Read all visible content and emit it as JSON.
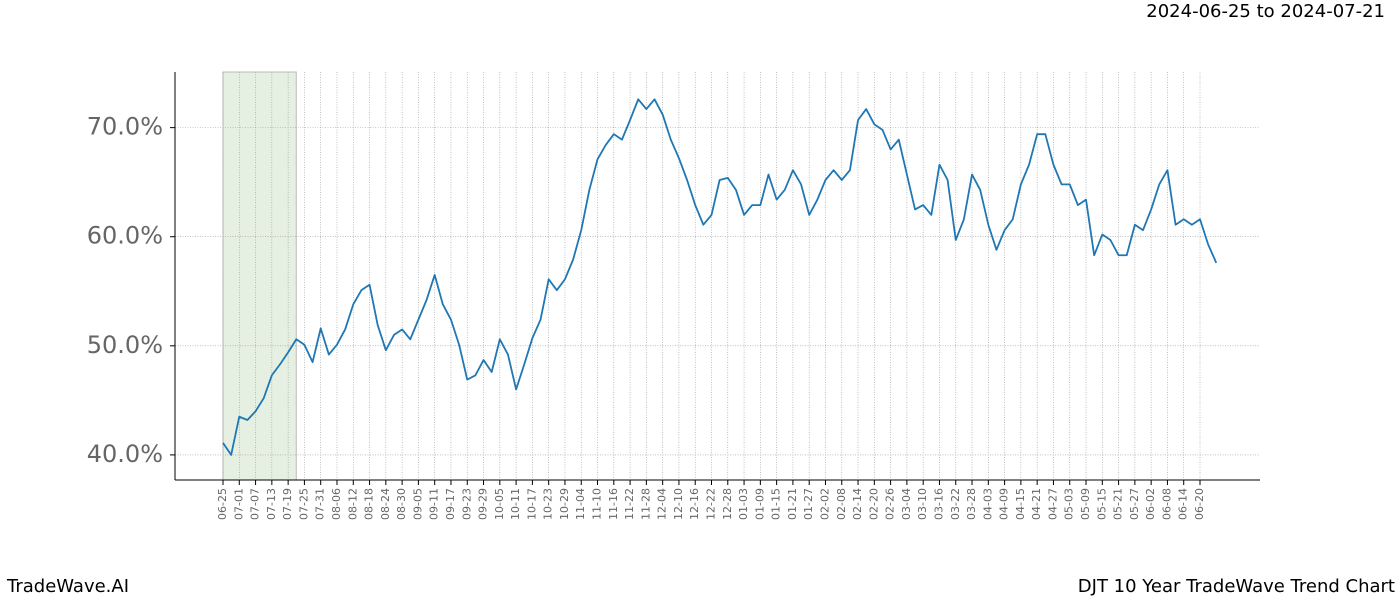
{
  "chart_data": {
    "type": "line",
    "date_range": "2024-06-25 to 2024-07-21",
    "brand": "TradeWave.AI",
    "title": "DJT 10 Year TradeWave Trend Chart",
    "categories": [
      "06-25",
      null,
      "07-01",
      null,
      "07-07",
      null,
      "07-13",
      null,
      "07-19",
      null,
      "07-25",
      null,
      "07-31",
      null,
      "08-06",
      null,
      "08-12",
      null,
      "08-18",
      null,
      "08-24",
      null,
      "08-30",
      null,
      "09-05",
      null,
      "09-11",
      null,
      "09-17",
      null,
      "09-23",
      null,
      "09-29",
      null,
      "10-05",
      null,
      "10-11",
      null,
      "10-17",
      null,
      "10-23",
      null,
      "10-29",
      null,
      "11-04",
      null,
      "11-10",
      null,
      "11-16",
      null,
      "11-22",
      null,
      "11-28",
      null,
      "12-04",
      null,
      "12-10",
      null,
      "12-16",
      null,
      "12-22",
      null,
      "12-28",
      null,
      "01-03",
      null,
      "01-09",
      null,
      "01-15",
      null,
      "01-21",
      null,
      "01-27",
      null,
      "02-02",
      null,
      "02-08",
      null,
      "02-14",
      null,
      "02-20",
      null,
      "02-26",
      null,
      "03-04",
      null,
      "03-10",
      null,
      "03-16",
      null,
      "03-22",
      null,
      "03-28",
      null,
      "04-03",
      null,
      "04-09",
      null,
      "04-15",
      null,
      "04-21",
      null,
      "04-27",
      null,
      "05-03",
      null,
      "05-09",
      null,
      "05-15",
      null,
      "05-21",
      null,
      "05-27",
      null,
      "06-02",
      null,
      "06-08",
      null,
      "06-14",
      null,
      "06-20",
      null,
      null
    ],
    "series": [
      {
        "color": "#1f77b4",
        "values": [
          41.1,
          40.0,
          43.5,
          43.2,
          44.0,
          45.2,
          47.3,
          48.3,
          49.4,
          50.6,
          50.1,
          48.5,
          51.6,
          49.2,
          50.1,
          51.5,
          53.8,
          55.1,
          55.6,
          51.9,
          49.6,
          51.0,
          51.5,
          50.6,
          52.4,
          54.2,
          56.5,
          53.8,
          52.4,
          50.1,
          46.9,
          47.3,
          48.7,
          47.6,
          50.6,
          49.2,
          46.0,
          48.3,
          50.7,
          52.4,
          56.1,
          55.1,
          56.1,
          57.9,
          60.6,
          64.3,
          67.1,
          68.4,
          69.4,
          68.9,
          70.7,
          72.6,
          71.7,
          72.6,
          71.2,
          68.9,
          67.2,
          65.2,
          62.9,
          61.1,
          62.0,
          65.2,
          65.4,
          64.3,
          62.0,
          62.9,
          62.9,
          65.7,
          63.4,
          64.3,
          66.1,
          64.8,
          62.0,
          63.4,
          65.2,
          66.1,
          65.2,
          66.1,
          70.7,
          71.7,
          70.3,
          69.8,
          68.0,
          68.9,
          65.7,
          62.5,
          62.9,
          62.0,
          66.6,
          65.2,
          59.7,
          61.6,
          65.7,
          64.3,
          61.1,
          58.8,
          60.6,
          61.6,
          64.8,
          66.6,
          69.4,
          69.4,
          66.6,
          64.8,
          64.8,
          62.9,
          63.4,
          58.3,
          60.2,
          59.7,
          58.3,
          58.3,
          61.1,
          60.6,
          62.5,
          64.8,
          66.1,
          61.1,
          61.6,
          61.1,
          61.6,
          59.3,
          57.6
        ]
      }
    ],
    "highlight_index_range": [
      0,
      9
    ],
    "highlight_color": "#e6f0e2",
    "ylim": [
      37.7,
      75.1
    ],
    "yticks": [
      {
        "value": 40,
        "label": "40.0%"
      },
      {
        "value": 50,
        "label": "50.0%"
      },
      {
        "value": 60,
        "label": "60.0%"
      },
      {
        "value": 70,
        "label": "70.0%"
      }
    ],
    "grid": true
  }
}
